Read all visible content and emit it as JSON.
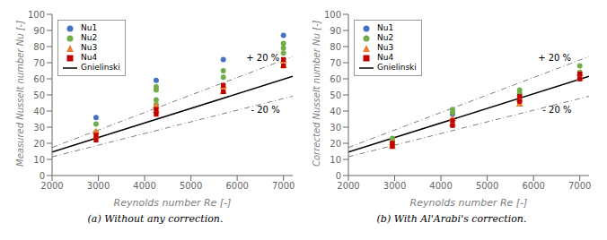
{
  "chart_data": [
    {
      "type": "scatter",
      "caption": "(a) Without any correction.",
      "x_label": "Reynolds number Re [-]",
      "y_label": "Measured Nusselt number Nu [-]",
      "xlim": [
        2000,
        7200
      ],
      "xticks": [
        2000,
        3000,
        4000,
        5000,
        6000,
        7000
      ],
      "ylim": [
        0,
        100
      ],
      "yticks": [
        0,
        10,
        20,
        30,
        40,
        50,
        60,
        70,
        80,
        90,
        100
      ],
      "grid": false,
      "legend": "upper left",
      "series": [
        {
          "name": "Nu1",
          "type": "scatter",
          "color": "#4472C4",
          "marker": "circle",
          "x": [
            2950,
            4250,
            5700,
            7000
          ],
          "values": [
            36,
            59,
            72,
            87
          ]
        },
        {
          "name": "Nu2",
          "type": "scatter",
          "color": "#70AD47",
          "marker": "circle",
          "x": [
            2950,
            2950,
            4250,
            4250,
            4250,
            4250,
            5700,
            5700,
            7000,
            7000,
            7000
          ],
          "values": [
            27,
            32,
            44,
            47,
            53,
            55,
            61,
            65,
            76,
            79,
            82
          ]
        },
        {
          "name": "Nu3",
          "type": "scatter",
          "color": "#ED7D31",
          "marker": "triangle",
          "x": [
            2950,
            2950,
            4250,
            4250,
            5700,
            5700,
            7000,
            7000
          ],
          "values": [
            24,
            27,
            40,
            43,
            52,
            55,
            68,
            71
          ]
        },
        {
          "name": "Nu4",
          "type": "scatter",
          "color": "#C00000",
          "marker": "square",
          "x": [
            2950,
            2950,
            4250,
            4250,
            5700,
            5700,
            7000,
            7000
          ],
          "values": [
            22,
            25,
            38,
            41,
            52,
            56,
            68,
            72
          ]
        },
        {
          "name": "Gnielinski",
          "type": "line",
          "color": "#000000",
          "line_style": "solid",
          "x": [
            2000,
            7200
          ],
          "values": [
            14.5,
            61.5
          ]
        },
        {
          "type": "line",
          "color": "#808080",
          "line_style": "dashdot",
          "x": [
            2000,
            7200
          ],
          "values": [
            17.4,
            73.8
          ]
        },
        {
          "type": "line",
          "color": "#808080",
          "line_style": "dashdot",
          "x": [
            2000,
            7200
          ],
          "values": [
            11.6,
            49.2
          ]
        }
      ],
      "annotations": [
        {
          "text": "+ 20 %",
          "x": 6100,
          "y": 73
        },
        {
          "text": "- 20 %",
          "x": 6200,
          "y": 41
        }
      ]
    },
    {
      "type": "scatter",
      "caption": "(b) With Al'Arabi's correction.",
      "x_label": "Reynolds number Re [-]",
      "y_label": "Corrected Nusselt number Nu [-]",
      "xlim": [
        2000,
        7200
      ],
      "xticks": [
        2000,
        3000,
        4000,
        5000,
        6000,
        7000
      ],
      "ylim": [
        0,
        100
      ],
      "yticks": [
        0,
        10,
        20,
        30,
        40,
        50,
        60,
        70,
        80,
        90,
        100
      ],
      "grid": false,
      "legend": "upper left",
      "series": [
        {
          "name": "Nu1",
          "type": "scatter",
          "color": "#4472C4",
          "marker": "circle",
          "x": [
            2950,
            4250,
            5700,
            7000
          ],
          "values": [
            21,
            38,
            49,
            60
          ]
        },
        {
          "name": "Nu2",
          "type": "scatter",
          "color": "#70AD47",
          "marker": "circle",
          "x": [
            2950,
            2950,
            4250,
            4250,
            5700,
            5700,
            7000,
            7000
          ],
          "values": [
            21,
            23,
            39,
            41,
            51,
            53,
            64,
            68
          ]
        },
        {
          "name": "Nu3",
          "type": "scatter",
          "color": "#ED7D31",
          "marker": "triangle",
          "x": [
            2950,
            2950,
            4250,
            4250,
            5700,
            5700,
            7000,
            7000
          ],
          "values": [
            18,
            20,
            32,
            35,
            44,
            47,
            60,
            63
          ]
        },
        {
          "name": "Nu4",
          "type": "scatter",
          "color": "#C00000",
          "marker": "square",
          "x": [
            2950,
            2950,
            4250,
            4250,
            5700,
            5700,
            7000,
            7000
          ],
          "values": [
            18,
            20,
            31,
            34,
            46,
            49,
            60,
            63
          ]
        },
        {
          "name": "Gnielinski",
          "type": "line",
          "color": "#000000",
          "line_style": "solid",
          "x": [
            2000,
            7200
          ],
          "values": [
            14.5,
            61.5
          ]
        },
        {
          "type": "line",
          "color": "#808080",
          "line_style": "dashdot",
          "x": [
            2000,
            7200
          ],
          "values": [
            17.4,
            73.8
          ]
        },
        {
          "type": "line",
          "color": "#808080",
          "line_style": "dashdot",
          "x": [
            2000,
            7200
          ],
          "values": [
            11.6,
            49.2
          ]
        }
      ],
      "annotations": [
        {
          "text": "+ 20 %",
          "x": 6000,
          "y": 73
        },
        {
          "text": "- 20 %",
          "x": 6100,
          "y": 41
        }
      ]
    }
  ]
}
